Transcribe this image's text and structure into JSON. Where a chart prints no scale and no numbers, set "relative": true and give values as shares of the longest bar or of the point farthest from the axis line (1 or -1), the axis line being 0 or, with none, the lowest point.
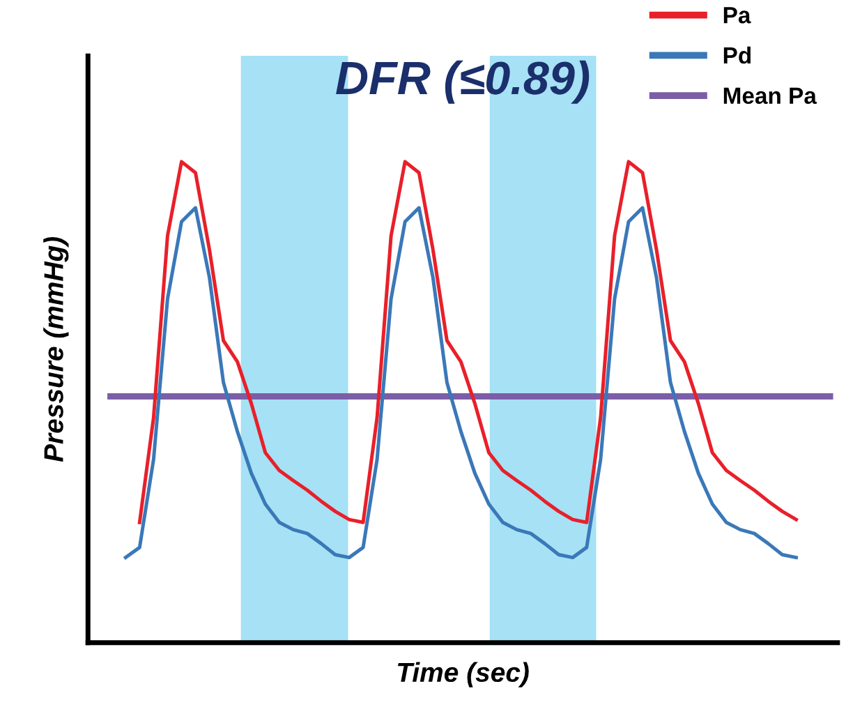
{
  "chart_data": {
    "type": "line",
    "title": "DFR (≤0.89)",
    "xlabel": "Time (sec)",
    "ylabel": "Pressure (mmHg)",
    "relative": true,
    "categories": [
      null,
      null,
      null,
      null,
      null,
      null,
      null,
      null,
      null,
      null,
      null,
      null,
      null,
      null,
      null,
      null,
      null,
      null,
      null,
      null,
      null,
      null,
      null,
      null,
      null,
      null,
      null,
      null,
      null,
      null,
      null,
      null,
      null,
      null,
      null,
      null,
      null,
      null,
      null,
      null,
      null,
      null,
      null,
      null,
      null,
      null,
      null,
      null,
      null
    ],
    "series": [
      {
        "name": "Pa",
        "color": "#e8202a",
        "values": [
          null,
          0.25,
          0.468,
          0.846,
          1.0,
          0.977,
          0.817,
          0.628,
          0.584,
          0.497,
          0.395,
          0.358,
          0.337,
          0.317,
          0.294,
          0.273,
          0.256,
          0.25,
          0.468,
          0.846,
          1.0,
          0.977,
          0.817,
          0.628,
          0.584,
          0.497,
          0.395,
          0.358,
          0.337,
          0.317,
          0.294,
          0.273,
          0.256,
          0.25,
          0.468,
          0.846,
          1.0,
          0.977,
          0.817,
          0.628,
          0.584,
          0.497,
          0.395,
          0.358,
          0.337,
          0.317,
          0.294,
          0.273,
          0.256
        ]
      },
      {
        "name": "Pd",
        "color": "#3a78b8",
        "values": [
          0.177,
          0.198,
          0.381,
          0.715,
          0.875,
          0.904,
          0.759,
          0.541,
          0.439,
          0.352,
          0.288,
          0.25,
          0.235,
          0.227,
          0.206,
          0.183,
          0.177,
          0.198,
          0.381,
          0.715,
          0.875,
          0.904,
          0.759,
          0.541,
          0.439,
          0.352,
          0.288,
          0.25,
          0.235,
          0.227,
          0.206,
          0.183,
          0.177,
          0.198,
          0.381,
          0.715,
          0.875,
          0.904,
          0.759,
          0.541,
          0.439,
          0.352,
          0.288,
          0.25,
          0.235,
          0.227,
          0.206,
          0.183,
          0.177
        ]
      }
    ],
    "ref_lines": [
      {
        "axis": "y",
        "value": 0.512,
        "label": "Mean Pa",
        "color": "#7b5ea7"
      }
    ],
    "legend": "top right",
    "marker": "none",
    "line_style": "solid"
  }
}
